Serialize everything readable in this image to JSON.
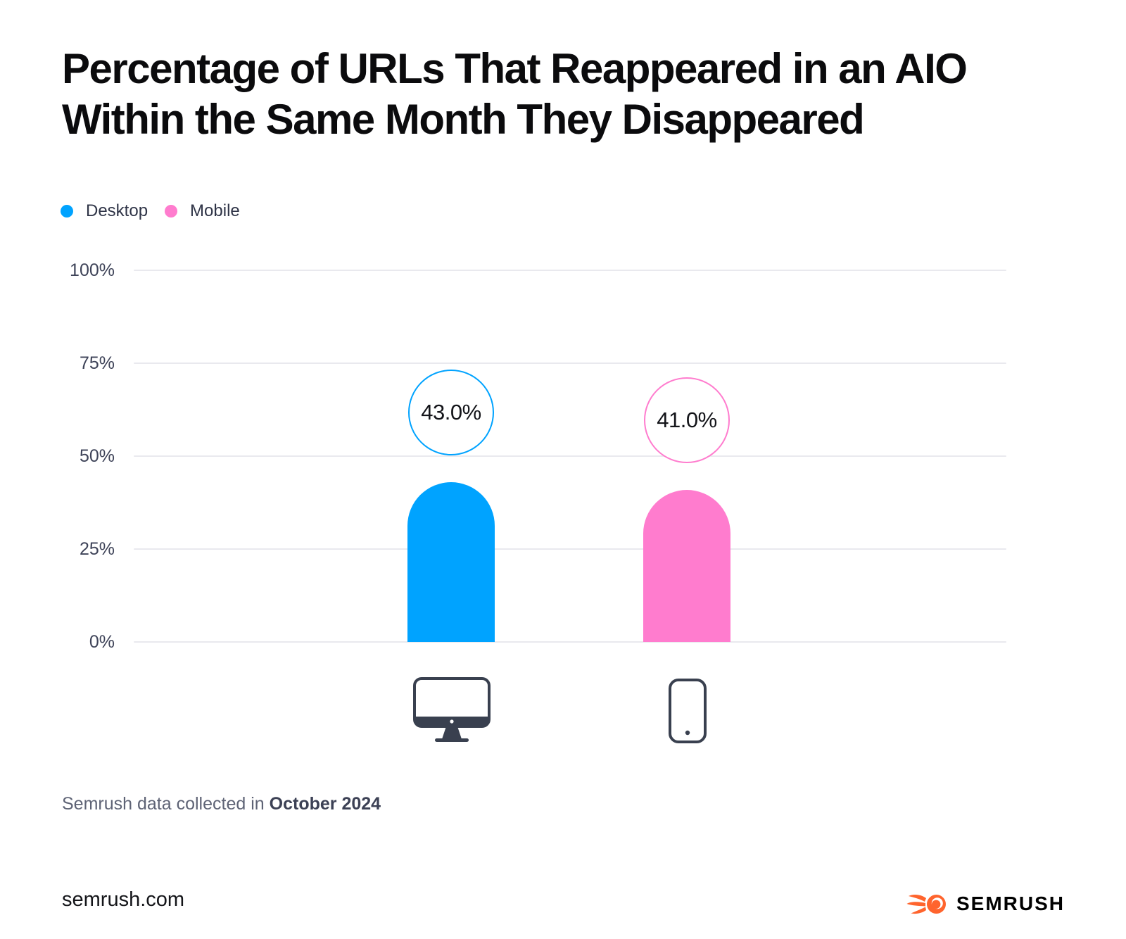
{
  "title": "Percentage of URLs That Reappeared in an AIO Within the Same Month They Disappeared",
  "legend": [
    {
      "label": "Desktop",
      "color": "#00A3FF"
    },
    {
      "label": "Mobile",
      "color": "#FF7CCE"
    }
  ],
  "chart_data": {
    "type": "bar",
    "title": "Percentage of URLs That Reappeared in an AIO Within the Same Month They Disappeared",
    "categories": [
      "Desktop",
      "Mobile"
    ],
    "values": [
      43.0,
      41.0
    ],
    "value_labels": [
      "43.0%",
      "41.0%"
    ],
    "series_colors": [
      "#00A3FF",
      "#FF7CCE"
    ],
    "y_ticks": [
      "0%",
      "25%",
      "50%",
      "75%",
      "100%"
    ],
    "ylim": [
      0,
      100
    ],
    "grid": true,
    "legend_position": "top-left",
    "category_icons": [
      "desktop-monitor-icon",
      "mobile-phone-icon"
    ]
  },
  "footnote": {
    "prefix": "Semrush data collected in",
    "emphasis": "October 2024"
  },
  "footer": {
    "website": "semrush.com",
    "brand": "SEMRUSH"
  },
  "colors": {
    "desktop_blue": "#00A3FF",
    "mobile_pink": "#FF7CCE",
    "gridline": "#E9E9EE",
    "axis_label": "#3E4358",
    "icon_stroke": "#39404F",
    "brand_orange": "#FF642D"
  }
}
